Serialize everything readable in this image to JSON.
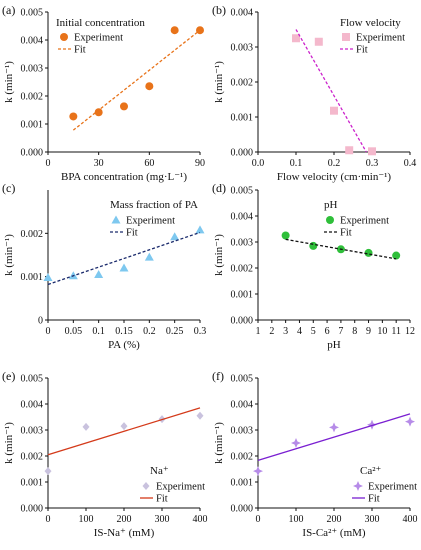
{
  "chart_data": [
    {
      "panel_label": "(a)",
      "type": "scatter",
      "title": "Initial concentration",
      "xlabel": "BPA concentration (mg·L⁻¹)",
      "ylabel": "k (min⁻¹)",
      "xlim": [
        0,
        90
      ],
      "ylim": [
        0,
        0.005
      ],
      "xticks": [
        0,
        30,
        60,
        90
      ],
      "xtick_labels": [
        "0",
        "30",
        "60",
        "90"
      ],
      "yticks": [
        0,
        0.001,
        0.002,
        0.003,
        0.004,
        0.005
      ],
      "ytick_labels": [
        "0.000",
        "0.001",
        "0.002",
        "0.003",
        "0.004",
        "0.005"
      ],
      "legend": {
        "position": "top-left",
        "entries": [
          "Experiment",
          "Fit"
        ]
      },
      "series": [
        {
          "name": "Experiment",
          "kind": "scatter",
          "marker": "circle",
          "color": "#e8731a",
          "x": [
            15,
            30,
            45,
            60,
            75,
            90
          ],
          "y": [
            0.00127,
            0.00142,
            0.00163,
            0.00235,
            0.00435,
            0.00435
          ]
        },
        {
          "name": "Fit",
          "kind": "line",
          "style": "dashed",
          "color": "#e8731a",
          "x": [
            15,
            90
          ],
          "y": [
            0.00078,
            0.00435
          ]
        }
      ]
    },
    {
      "panel_label": "(b)",
      "type": "scatter",
      "title": "Flow velocity",
      "xlabel": "Flow velocity (cm·min⁻¹)",
      "ylabel": "k (min⁻¹)",
      "xlim": [
        0,
        0.4
      ],
      "ylim": [
        0,
        0.004
      ],
      "xticks": [
        0,
        0.1,
        0.2,
        0.3,
        0.4
      ],
      "xtick_labels": [
        "0.0",
        "0.1",
        "0.2",
        "0.3",
        "0.4"
      ],
      "yticks": [
        0,
        0.001,
        0.002,
        0.003,
        0.004
      ],
      "ytick_labels": [
        "0.000",
        "0.001",
        "0.002",
        "0.003",
        "0.004"
      ],
      "legend": {
        "position": "top-right",
        "entries": [
          "Experiment",
          "Fit"
        ]
      },
      "series": [
        {
          "name": "Experiment",
          "kind": "scatter",
          "marker": "square",
          "color": "#f4b8cc",
          "x": [
            0.1,
            0.16,
            0.2,
            0.24,
            0.3
          ],
          "y": [
            0.00325,
            0.00315,
            0.00118,
            5e-05,
            2e-05
          ]
        },
        {
          "name": "Fit",
          "kind": "line",
          "style": "dashed",
          "color": "#cc22cc",
          "x": [
            0.1,
            0.285
          ],
          "y": [
            0.0035,
            0.0
          ]
        }
      ]
    },
    {
      "panel_label": "(c)",
      "type": "scatter",
      "title": "Mass fraction of PA",
      "xlabel": "PA (%)",
      "ylabel": "k (min⁻¹)",
      "xlim": [
        0,
        0.3
      ],
      "ylim": [
        0,
        0.003
      ],
      "xticks": [
        0,
        0.05,
        0.1,
        0.15,
        0.2,
        0.25,
        0.3
      ],
      "xtick_labels": [
        "0",
        "0.05",
        "0.1",
        "0.15",
        "0.2",
        "0.25",
        "0.3"
      ],
      "yticks": [
        0,
        0.001,
        0.002
      ],
      "ytick_labels": [
        "0",
        "0.001",
        "0.002"
      ],
      "legend": {
        "position": "top-center",
        "entries": [
          "Experiment",
          "Fit"
        ]
      },
      "series": [
        {
          "name": "Experiment",
          "kind": "scatter",
          "marker": "triangle",
          "color": "#7ec8ef",
          "x": [
            0,
            0.05,
            0.1,
            0.15,
            0.2,
            0.25,
            0.3
          ],
          "y": [
            0.00098,
            0.00102,
            0.00105,
            0.0012,
            0.00145,
            0.00192,
            0.00208
          ]
        },
        {
          "name": "Fit",
          "kind": "line",
          "style": "dashed",
          "color": "#1a2a6c",
          "x": [
            0,
            0.3
          ],
          "y": [
            0.00082,
            0.00202
          ]
        }
      ]
    },
    {
      "panel_label": "(d)",
      "type": "scatter",
      "title": "pH",
      "xlabel": "pH",
      "ylabel": "k (min⁻¹)",
      "xlim": [
        1,
        12
      ],
      "ylim": [
        0,
        0.005
      ],
      "xticks": [
        1,
        2,
        3,
        4,
        5,
        6,
        7,
        8,
        9,
        10,
        11,
        12
      ],
      "xtick_labels": [
        "1",
        "2",
        "3",
        "4",
        "5",
        "6",
        "7",
        "8",
        "9",
        "10",
        "11",
        "12"
      ],
      "yticks": [
        0,
        0.001,
        0.002,
        0.003,
        0.004,
        0.005
      ],
      "ytick_labels": [
        "0.000",
        "0.001",
        "0.002",
        "0.003",
        "0.004",
        "0.005"
      ],
      "legend": {
        "position": "top-center",
        "entries": [
          "Experiment",
          "Fit"
        ]
      },
      "series": [
        {
          "name": "Experiment",
          "kind": "scatter",
          "marker": "circle",
          "color": "#2fbf3a",
          "x": [
            3,
            5,
            7,
            9,
            11
          ],
          "y": [
            0.00325,
            0.00285,
            0.00272,
            0.00258,
            0.00248
          ]
        },
        {
          "name": "Fit",
          "kind": "line",
          "style": "dashed",
          "color": "#111111",
          "x": [
            3,
            11
          ],
          "y": [
            0.0031,
            0.00235
          ]
        }
      ]
    },
    {
      "panel_label": "(e)",
      "type": "scatter",
      "title": "Na⁺",
      "xlabel": "IS-Na⁺ (mM)",
      "ylabel": "k (min⁻¹)",
      "xlim": [
        0,
        400
      ],
      "ylim": [
        0,
        0.005
      ],
      "xticks": [
        0,
        100,
        200,
        300,
        400
      ],
      "xtick_labels": [
        "0",
        "100",
        "200",
        "300",
        "400"
      ],
      "yticks": [
        0,
        0.001,
        0.002,
        0.003,
        0.004,
        0.005
      ],
      "ytick_labels": [
        "0.000",
        "0.001",
        "0.002",
        "0.003",
        "0.004",
        "0.005"
      ],
      "legend": {
        "position": "bottom-right",
        "entries": [
          "Experiment",
          "Fit"
        ]
      },
      "series": [
        {
          "name": "Experiment",
          "kind": "scatter",
          "marker": "diamond",
          "color": "#c9c2de",
          "x": [
            0,
            100,
            200,
            300,
            400
          ],
          "y": [
            0.00142,
            0.00312,
            0.00315,
            0.00342,
            0.00355
          ]
        },
        {
          "name": "Fit",
          "kind": "line",
          "style": "solid",
          "color": "#d43a1a",
          "x": [
            0,
            400
          ],
          "y": [
            0.00205,
            0.00385
          ]
        }
      ]
    },
    {
      "panel_label": "(f)",
      "type": "scatter",
      "title": "Ca²⁺",
      "xlabel": "IS-Ca²⁺ (mM)",
      "ylabel": "k (min⁻¹)",
      "xlim": [
        0,
        400
      ],
      "ylim": [
        0,
        0.005
      ],
      "xticks": [
        0,
        100,
        200,
        300,
        400
      ],
      "xtick_labels": [
        "0",
        "100",
        "200",
        "300",
        "400"
      ],
      "yticks": [
        0,
        0.001,
        0.002,
        0.003,
        0.004,
        0.005
      ],
      "ytick_labels": [
        "0.000",
        "0.001",
        "0.002",
        "0.003",
        "0.004",
        "0.005"
      ],
      "legend": {
        "position": "bottom-right",
        "entries": [
          "Experiment",
          "Fit"
        ]
      },
      "series": [
        {
          "name": "Experiment",
          "kind": "scatter",
          "marker": "star4",
          "color": "#b68be8",
          "x": [
            0,
            100,
            200,
            300,
            400
          ],
          "y": [
            0.00142,
            0.0025,
            0.0031,
            0.0032,
            0.00332
          ]
        },
        {
          "name": "Fit",
          "kind": "line",
          "style": "solid",
          "color": "#7a1fd1",
          "x": [
            0,
            400
          ],
          "y": [
            0.00183,
            0.00362
          ]
        }
      ]
    }
  ]
}
